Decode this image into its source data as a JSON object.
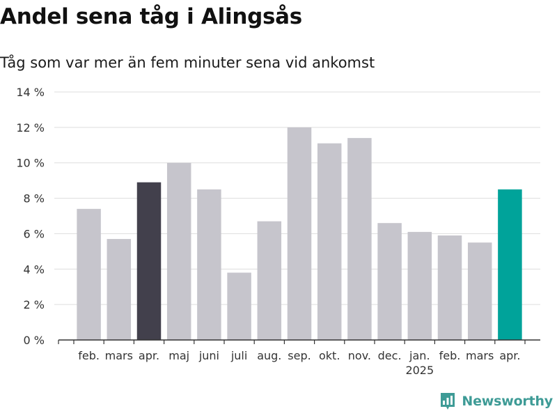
{
  "title": "Andel sena tåg i Alingsås",
  "subtitle": "Tåg som var mer än fem minuter sena vid ankomst",
  "brand": {
    "name": "Newsworthy"
  },
  "colors": {
    "bar_default": "#c6c5cc",
    "bar_previous_year": "#42404c",
    "bar_current": "#00a39a",
    "grid": "#dddddd",
    "axis": "#333333",
    "text": "#333333",
    "brand": "#3e9b96"
  },
  "chart_data": {
    "type": "bar",
    "categories": [
      "feb.",
      "mars",
      "apr.",
      "maj",
      "juni",
      "juli",
      "aug.",
      "sep.",
      "okt.",
      "nov.",
      "dec.",
      "jan.",
      "feb.",
      "mars",
      "apr."
    ],
    "category_sublabels": [
      "",
      "",
      "",
      "",
      "",
      "",
      "",
      "",
      "",
      "",
      "",
      "2025",
      "",
      "",
      ""
    ],
    "values": [
      7.4,
      5.7,
      8.9,
      10.0,
      8.5,
      3.8,
      6.7,
      12.0,
      11.1,
      11.4,
      6.6,
      6.1,
      5.9,
      5.5,
      8.5
    ],
    "highlight": [
      "default",
      "default",
      "previous_year",
      "default",
      "default",
      "default",
      "default",
      "default",
      "default",
      "default",
      "default",
      "default",
      "default",
      "default",
      "current"
    ],
    "yticks": [
      0,
      2,
      4,
      6,
      8,
      10,
      12,
      14
    ],
    "ytick_labels": [
      "0 %",
      "2 %",
      "4 %",
      "6 %",
      "8 %",
      "10 %",
      "12 %",
      "14 %"
    ],
    "ylim": [
      0,
      14
    ],
    "grid": true
  }
}
